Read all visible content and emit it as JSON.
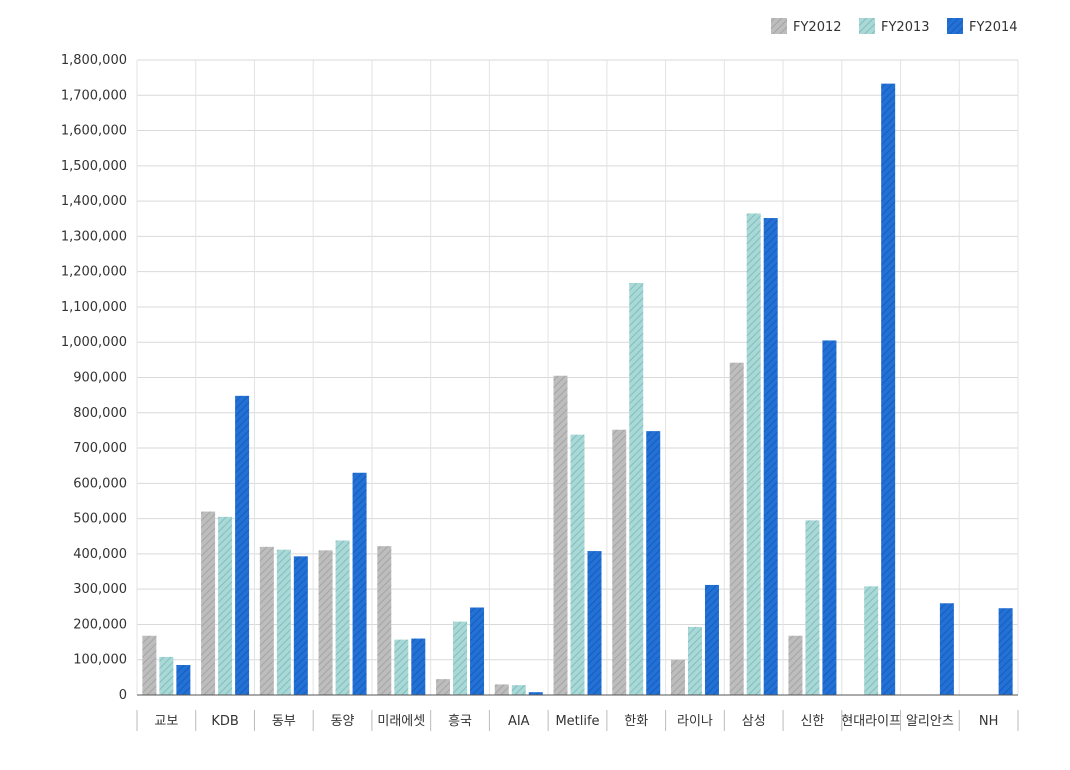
{
  "chart_data": {
    "type": "bar",
    "title": "",
    "xlabel": "",
    "ylabel": "",
    "ylim": [
      0,
      1800000
    ],
    "yticks": [
      0,
      100000,
      200000,
      300000,
      400000,
      500000,
      600000,
      700000,
      800000,
      900000,
      1000000,
      1100000,
      1200000,
      1300000,
      1400000,
      1500000,
      1600000,
      1700000,
      1800000
    ],
    "ytick_labels": [
      "0",
      "100,000",
      "200,000",
      "300,000",
      "400,000",
      "500,000",
      "600,000",
      "700,000",
      "800,000",
      "900,000",
      "1,000,000",
      "1,100,000",
      "1,200,000",
      "1,300,000",
      "1,400,000",
      "1,500,000",
      "1,600,000",
      "1,700,000",
      "1,800,000"
    ],
    "grid": true,
    "legend_position": "top-right",
    "categories": [
      "교보",
      "KDB",
      "동부",
      "동양",
      "미래에셋",
      "흥국",
      "AIA",
      "Metlife",
      "한화",
      "라이나",
      "삼성",
      "신한",
      "현대라이프",
      "알리안츠",
      "NH"
    ],
    "series": [
      {
        "name": "FY2012",
        "color": "#b7b7b7",
        "values": [
          168000,
          520000,
          420000,
          410000,
          422000,
          45000,
          30000,
          905000,
          752000,
          100000,
          942000,
          168000,
          null,
          null,
          null
        ]
      },
      {
        "name": "FY2013",
        "color": "#9fd1cf",
        "values": [
          108000,
          505000,
          412000,
          438000,
          157000,
          208000,
          28000,
          738000,
          1168000,
          193000,
          1365000,
          495000,
          308000,
          null,
          null
        ]
      },
      {
        "name": "FY2014",
        "color": "#1f68cc",
        "values": [
          85000,
          848000,
          393000,
          630000,
          160000,
          248000,
          8000,
          408000,
          748000,
          312000,
          1352000,
          1005000,
          1733000,
          260000,
          246000
        ]
      }
    ]
  }
}
